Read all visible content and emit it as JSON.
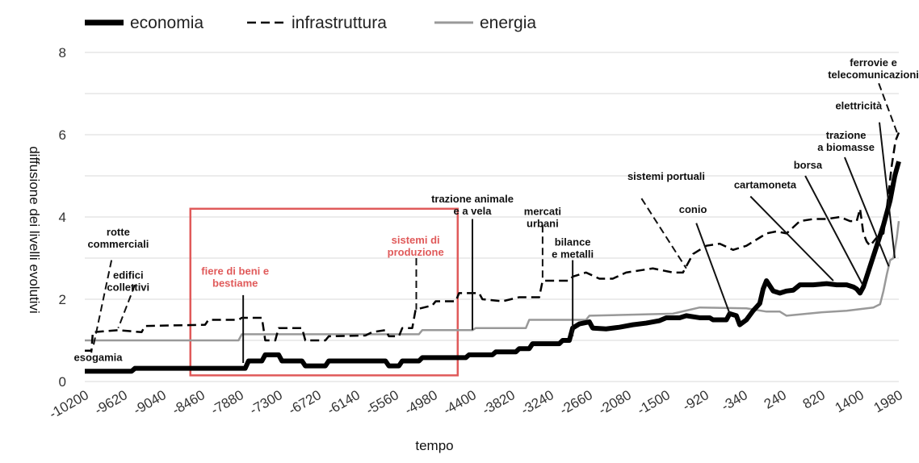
{
  "colors": {
    "economia": "#000000",
    "infrastruttura": "#000000",
    "energia": "#999999",
    "highlight": "#e05a5a",
    "grid": "#d9d9d9"
  },
  "chart_data": {
    "type": "line",
    "xlabel": "tempo",
    "ylabel": "diffusione dei livelli evolutivi",
    "xlim": [
      -10200,
      1980
    ],
    "ylim": [
      0,
      8
    ],
    "x_ticks": [
      "-10200",
      "-9620",
      "-9040",
      "-8460",
      "-7880",
      "-7300",
      "-6720",
      "-6140",
      "-5560",
      "-4980",
      "-4400",
      "-3820",
      "-3240",
      "-2660",
      "-2080",
      "-1500",
      "-920",
      "-340",
      "240",
      "820",
      "1400",
      "1980"
    ],
    "y_ticks": [
      "0",
      "2",
      "4",
      "6",
      "8"
    ],
    "grid": "horizontal",
    "legend_position": "top-left",
    "series": [
      {
        "name": "economia",
        "style": "solid-thick",
        "points": [
          [
            -10200,
            0.25
          ],
          [
            -9500,
            0.25
          ],
          [
            -9450,
            0.32
          ],
          [
            -7800,
            0.32
          ],
          [
            -7750,
            0.5
          ],
          [
            -7550,
            0.5
          ],
          [
            -7500,
            0.65
          ],
          [
            -7300,
            0.65
          ],
          [
            -7250,
            0.5
          ],
          [
            -6950,
            0.5
          ],
          [
            -6900,
            0.38
          ],
          [
            -6600,
            0.38
          ],
          [
            -6550,
            0.5
          ],
          [
            -5700,
            0.5
          ],
          [
            -5650,
            0.38
          ],
          [
            -5500,
            0.38
          ],
          [
            -5450,
            0.5
          ],
          [
            -5200,
            0.5
          ],
          [
            -5150,
            0.58
          ],
          [
            -4500,
            0.58
          ],
          [
            -4450,
            0.65
          ],
          [
            -4100,
            0.65
          ],
          [
            -4050,
            0.72
          ],
          [
            -3750,
            0.72
          ],
          [
            -3700,
            0.8
          ],
          [
            -3550,
            0.8
          ],
          [
            -3500,
            0.92
          ],
          [
            -3100,
            0.92
          ],
          [
            -3050,
            1.0
          ],
          [
            -2950,
            1.0
          ],
          [
            -2900,
            1.3
          ],
          [
            -2800,
            1.4
          ],
          [
            -2650,
            1.45
          ],
          [
            -2600,
            1.3
          ],
          [
            -2400,
            1.28
          ],
          [
            -2200,
            1.32
          ],
          [
            -2000,
            1.38
          ],
          [
            -1800,
            1.42
          ],
          [
            -1600,
            1.48
          ],
          [
            -1500,
            1.55
          ],
          [
            -1300,
            1.55
          ],
          [
            -1200,
            1.6
          ],
          [
            -1000,
            1.55
          ],
          [
            -850,
            1.55
          ],
          [
            -800,
            1.5
          ],
          [
            -600,
            1.5
          ],
          [
            -550,
            1.65
          ],
          [
            -450,
            1.6
          ],
          [
            -400,
            1.38
          ],
          [
            -300,
            1.5
          ],
          [
            -200,
            1.72
          ],
          [
            -100,
            1.9
          ],
          [
            -50,
            2.25
          ],
          [
            0,
            2.45
          ],
          [
            100,
            2.2
          ],
          [
            200,
            2.15
          ],
          [
            300,
            2.2
          ],
          [
            400,
            2.22
          ],
          [
            500,
            2.35
          ],
          [
            700,
            2.35
          ],
          [
            900,
            2.38
          ],
          [
            1050,
            2.35
          ],
          [
            1200,
            2.35
          ],
          [
            1300,
            2.3
          ],
          [
            1350,
            2.25
          ],
          [
            1400,
            2.15
          ],
          [
            1450,
            2.3
          ],
          [
            1550,
            2.8
          ],
          [
            1650,
            3.3
          ],
          [
            1750,
            3.8
          ],
          [
            1850,
            4.4
          ],
          [
            1920,
            5.0
          ],
          [
            1980,
            5.35
          ]
        ]
      },
      {
        "name": "infrastruttura",
        "style": "dashed",
        "points": [
          [
            -10200,
            0.75
          ],
          [
            -10100,
            0.75
          ],
          [
            -10080,
            1.2
          ],
          [
            -9700,
            1.25
          ],
          [
            -9350,
            1.2
          ],
          [
            -9300,
            1.35
          ],
          [
            -8400,
            1.38
          ],
          [
            -8350,
            1.5
          ],
          [
            -7900,
            1.5
          ],
          [
            -7850,
            1.55
          ],
          [
            -7550,
            1.55
          ],
          [
            -7500,
            1.0
          ],
          [
            -7350,
            1.0
          ],
          [
            -7300,
            1.3
          ],
          [
            -6950,
            1.3
          ],
          [
            -6900,
            1.0
          ],
          [
            -6600,
            1.0
          ],
          [
            -6550,
            1.1
          ],
          [
            -6000,
            1.12
          ],
          [
            -5900,
            1.2
          ],
          [
            -5700,
            1.25
          ],
          [
            -5650,
            1.1
          ],
          [
            -5500,
            1.1
          ],
          [
            -5450,
            1.3
          ],
          [
            -5300,
            1.3
          ],
          [
            -5250,
            1.75
          ],
          [
            -5000,
            1.85
          ],
          [
            -4950,
            1.95
          ],
          [
            -4650,
            1.95
          ],
          [
            -4600,
            2.15
          ],
          [
            -4300,
            2.15
          ],
          [
            -4250,
            2.0
          ],
          [
            -3950,
            1.95
          ],
          [
            -3700,
            2.05
          ],
          [
            -3400,
            2.05
          ],
          [
            -3350,
            2.45
          ],
          [
            -2950,
            2.45
          ],
          [
            -2900,
            2.55
          ],
          [
            -2700,
            2.65
          ],
          [
            -2500,
            2.5
          ],
          [
            -2300,
            2.5
          ],
          [
            -2100,
            2.65
          ],
          [
            -1900,
            2.7
          ],
          [
            -1700,
            2.75
          ],
          [
            -1550,
            2.7
          ],
          [
            -1400,
            2.65
          ],
          [
            -1250,
            2.65
          ],
          [
            -1150,
            2.95
          ],
          [
            -1100,
            3.1
          ],
          [
            -900,
            3.3
          ],
          [
            -700,
            3.35
          ],
          [
            -500,
            3.2
          ],
          [
            -300,
            3.3
          ],
          [
            -100,
            3.5
          ],
          [
            0,
            3.6
          ],
          [
            150,
            3.65
          ],
          [
            300,
            3.6
          ],
          [
            500,
            3.9
          ],
          [
            700,
            3.95
          ],
          [
            900,
            3.95
          ],
          [
            1100,
            4.0
          ],
          [
            1250,
            3.9
          ],
          [
            1350,
            3.9
          ],
          [
            1400,
            4.2
          ],
          [
            1450,
            3.6
          ],
          [
            1500,
            3.4
          ],
          [
            1550,
            3.3
          ],
          [
            1650,
            3.5
          ],
          [
            1750,
            3.6
          ],
          [
            1800,
            4.2
          ],
          [
            1870,
            5.2
          ],
          [
            1930,
            5.85
          ],
          [
            1980,
            6.05
          ]
        ]
      },
      {
        "name": "energia",
        "style": "solid-gray",
        "points": [
          [
            -10200,
            1.0
          ],
          [
            -7900,
            1.0
          ],
          [
            -7850,
            1.15
          ],
          [
            -5200,
            1.15
          ],
          [
            -5150,
            1.25
          ],
          [
            -4400,
            1.25
          ],
          [
            -4350,
            1.3
          ],
          [
            -3600,
            1.3
          ],
          [
            -3550,
            1.5
          ],
          [
            -2700,
            1.5
          ],
          [
            -2650,
            1.6
          ],
          [
            -1400,
            1.65
          ],
          [
            -1000,
            1.8
          ],
          [
            -300,
            1.78
          ],
          [
            0,
            1.7
          ],
          [
            200,
            1.7
          ],
          [
            300,
            1.6
          ],
          [
            800,
            1.68
          ],
          [
            1200,
            1.72
          ],
          [
            1600,
            1.8
          ],
          [
            1700,
            1.88
          ],
          [
            1750,
            2.2
          ],
          [
            1800,
            2.6
          ],
          [
            1850,
            2.95
          ],
          [
            1900,
            3.0
          ],
          [
            1950,
            3.5
          ],
          [
            1980,
            3.9
          ]
        ]
      }
    ],
    "annotations": [
      {
        "text_lines": [
          "esogamia"
        ],
        "color": "black",
        "label_at": [
          -10000,
          0.5
        ],
        "line_from": [
          -10100,
          0.7
        ],
        "line_to": [
          -10100,
          0.75
        ],
        "dashed": false
      },
      {
        "text_lines": [
          "rotte",
          "commerciali"
        ],
        "color": "black",
        "label_at": [
          -9700,
          3.55
        ],
        "line_from": [
          -9800,
          2.95
        ],
        "line_to": [
          -10080,
          0.8
        ],
        "dashed": true
      },
      {
        "text_lines": [
          "edifici",
          "collettivi"
        ],
        "color": "black",
        "label_at": [
          -9550,
          2.5
        ],
        "line_from": [
          -9450,
          2.35
        ],
        "line_to": [
          -9700,
          1.3
        ],
        "dashed": true
      },
      {
        "text_lines": [
          "fiere di beni e",
          "bestiame"
        ],
        "color": "red",
        "label_at": [
          -7950,
          2.6
        ],
        "line_from": [
          -7830,
          2.1
        ],
        "line_to": [
          -7830,
          0.45
        ],
        "dashed": false
      },
      {
        "text_lines": [
          "sistemi di",
          "produzione"
        ],
        "color": "red",
        "label_at": [
          -5250,
          3.35
        ],
        "line_from": [
          -5240,
          3.0
        ],
        "line_to": [
          -5240,
          1.75
        ],
        "dashed": true
      },
      {
        "text_lines": [
          "trazione animale",
          "e a vela"
        ],
        "color": "black",
        "label_at": [
          -4400,
          4.35
        ],
        "line_from": [
          -4400,
          3.95
        ],
        "line_to": [
          -4400,
          1.25
        ],
        "dashed": false
      },
      {
        "text_lines": [
          "mercati",
          "urbani"
        ],
        "color": "black",
        "label_at": [
          -3350,
          4.05
        ],
        "line_from": [
          -3350,
          3.8
        ],
        "line_to": [
          -3350,
          2.45
        ],
        "dashed": true
      },
      {
        "text_lines": [
          "bilance",
          "e metalli"
        ],
        "color": "black",
        "label_at": [
          -2900,
          3.3
        ],
        "line_from": [
          -2900,
          2.95
        ],
        "line_to": [
          -2900,
          1.1
        ],
        "dashed": false
      },
      {
        "text_lines": [
          "sistemi portuali"
        ],
        "color": "black",
        "label_at": [
          -1500,
          4.9
        ],
        "line_from": [
          -1870,
          4.45
        ],
        "line_to": [
          -1200,
          2.75
        ],
        "dashed": true
      },
      {
        "text_lines": [
          "conio"
        ],
        "color": "black",
        "label_at": [
          -1100,
          4.1
        ],
        "line_from": [
          -1050,
          3.85
        ],
        "line_to": [
          -550,
          1.65
        ],
        "dashed": false
      },
      {
        "text_lines": [
          "cartamoneta"
        ],
        "color": "black",
        "label_at": [
          -20,
          4.7
        ],
        "line_from": [
          -240,
          4.5
        ],
        "line_to": [
          1000,
          2.45
        ],
        "dashed": false
      },
      {
        "text_lines": [
          "borsa"
        ],
        "color": "black",
        "label_at": [
          620,
          5.18
        ],
        "line_from": [
          580,
          5.0
        ],
        "line_to": [
          1440,
          2.35
        ],
        "dashed": false
      },
      {
        "text_lines": [
          "trazione",
          "a biomasse"
        ],
        "color": "black",
        "label_at": [
          1190,
          5.9
        ],
        "line_from": [
          1170,
          5.45
        ],
        "line_to": [
          1830,
          2.8
        ],
        "dashed": false
      },
      {
        "text_lines": [
          "elettricità"
        ],
        "color": "black",
        "label_at": [
          1380,
          6.62
        ],
        "line_from": [
          1690,
          6.3
        ],
        "line_to": [
          1920,
          3.0
        ],
        "dashed": false
      },
      {
        "text_lines": [
          "ferrovie e",
          "telecomunicazioni"
        ],
        "color": "black",
        "label_at": [
          1600,
          7.67
        ],
        "line_from": [
          1680,
          7.25
        ],
        "line_to": [
          1965,
          6.0
        ],
        "dashed": true
      }
    ],
    "highlight_box": {
      "x_range": [
        -8620,
        -4620
      ],
      "y_range": [
        0.15,
        4.2
      ]
    }
  }
}
